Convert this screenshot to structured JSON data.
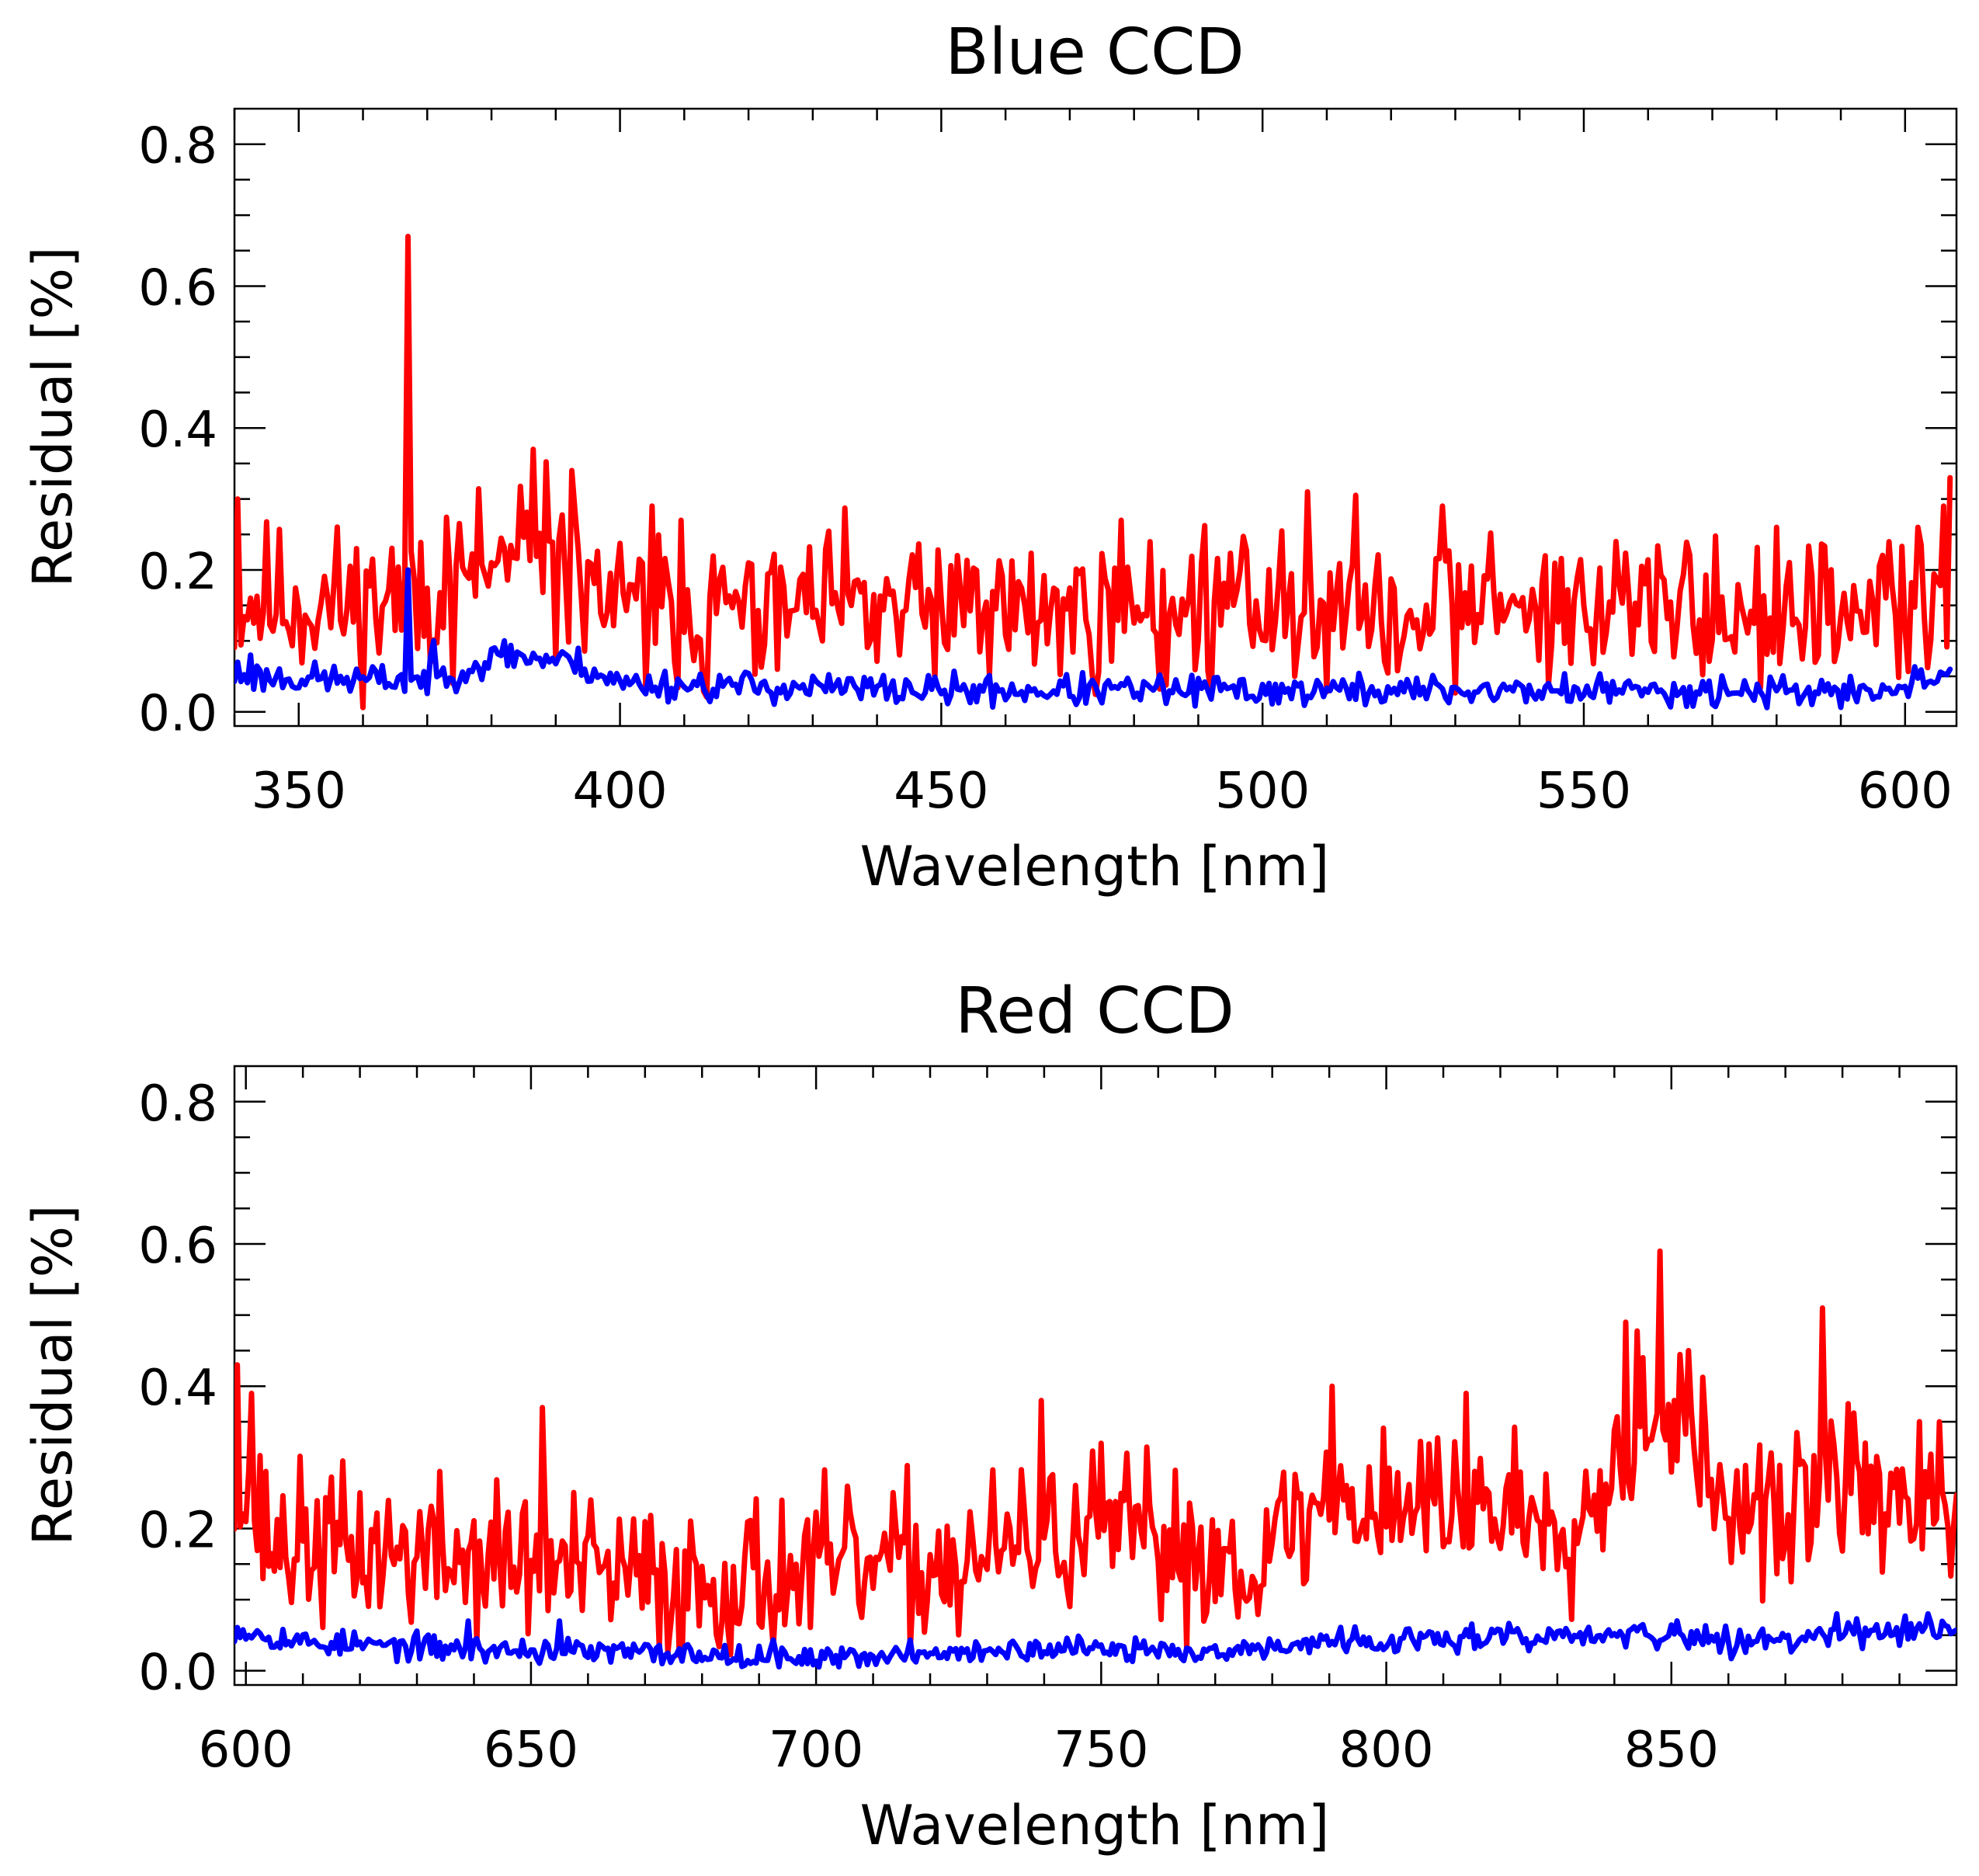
{
  "chart_data": [
    {
      "type": "line",
      "title": "Blue CCD",
      "xlabel": "Wavelength [nm]",
      "ylabel": "Residual [%]",
      "xlim": [
        340,
        608
      ],
      "ylim": [
        -0.02,
        0.85
      ],
      "xticks": [
        350,
        400,
        450,
        500,
        550,
        600
      ],
      "xtick_labels": [
        "350",
        "400",
        "450",
        "500",
        "550",
        "600"
      ],
      "yticks": [
        0.0,
        0.2,
        0.4,
        0.6,
        0.8
      ],
      "ytick_labels": [
        "0.0",
        "0.2",
        "0.4",
        "0.6",
        "0.8"
      ],
      "grid": false,
      "x_range": [
        340,
        607
      ],
      "series": [
        {
          "name": "red",
          "color": "#ff0000",
          "baseline": [
            [
              340,
              0.16
            ],
            [
              360,
              0.15
            ],
            [
              375,
              0.18
            ],
            [
              385,
              0.22
            ],
            [
              395,
              0.19
            ],
            [
              400,
              0.14
            ],
            [
              450,
              0.14
            ],
            [
              500,
              0.15
            ],
            [
              550,
              0.15
            ],
            [
              600,
              0.13
            ],
            [
              607,
              0.18
            ]
          ],
          "noise": 0.055,
          "seed": 11,
          "spikes": [
            [
              367,
              0.67
            ],
            [
              340.5,
              0.3
            ],
            [
              386.5,
              0.37
            ],
            [
              392.5,
              0.34
            ],
            [
              405,
              0.29
            ],
            [
              409.5,
              0.27
            ],
            [
              478,
              0.27
            ],
            [
              507,
              0.31
            ],
            [
              528,
              0.29
            ],
            [
              555,
              0.24
            ],
            [
              580,
              0.26
            ],
            [
              602,
              0.26
            ],
            [
              606,
              0.29
            ],
            [
              607,
              0.33
            ]
          ]
        },
        {
          "name": "blue",
          "color": "#0000ff",
          "baseline": [
            [
              340,
              0.05
            ],
            [
              360,
              0.045
            ],
            [
              370,
              0.045
            ],
            [
              383,
              0.08
            ],
            [
              393,
              0.07
            ],
            [
              400,
              0.04
            ],
            [
              450,
              0.03
            ],
            [
              500,
              0.03
            ],
            [
              550,
              0.03
            ],
            [
              600,
              0.03
            ],
            [
              607,
              0.05
            ]
          ],
          "noise": 0.011,
          "seed": 23,
          "spikes": [
            [
              367,
              0.2
            ],
            [
              342.5,
              0.08
            ],
            [
              382,
              0.1
            ],
            [
              371,
              0.1
            ],
            [
              340.5,
              0.07
            ],
            [
              607,
              0.06
            ]
          ]
        }
      ]
    },
    {
      "type": "line",
      "title": "Red CCD",
      "xlabel": "Wavelength [nm]",
      "ylabel": "Residual [%]",
      "xlim": [
        598,
        900
      ],
      "ylim": [
        -0.02,
        0.85
      ],
      "xticks": [
        600,
        650,
        700,
        750,
        800,
        850
      ],
      "xtick_labels": [
        "600",
        "650",
        "700",
        "750",
        "800",
        "850"
      ],
      "yticks": [
        0.0,
        0.2,
        0.4,
        0.6,
        0.8
      ],
      "ytick_labels": [
        "0.0",
        "0.2",
        "0.4",
        "0.6",
        "0.8"
      ],
      "grid": false,
      "x_range": [
        598,
        900
      ],
      "series": [
        {
          "name": "red",
          "color": "#ff0000",
          "baseline": [
            [
              598,
              0.25
            ],
            [
              605,
              0.18
            ],
            [
              620,
              0.17
            ],
            [
              650,
              0.15
            ],
            [
              675,
              0.12
            ],
            [
              700,
              0.14
            ],
            [
              725,
              0.15
            ],
            [
              750,
              0.2
            ],
            [
              770,
              0.16
            ],
            [
              778,
              0.16
            ],
            [
              790,
              0.24
            ],
            [
              800,
              0.24
            ],
            [
              820,
              0.23
            ],
            [
              835,
              0.22
            ],
            [
              840,
              0.3
            ],
            [
              845,
              0.38
            ],
            [
              850,
              0.37
            ],
            [
              858,
              0.25
            ],
            [
              865,
              0.2
            ],
            [
              880,
              0.27
            ],
            [
              890,
              0.24
            ],
            [
              900,
              0.22
            ]
          ],
          "noise": 0.055,
          "seed": 37,
          "spikes": [
            [
              598.5,
              0.43
            ],
            [
              601,
              0.39
            ],
            [
              652,
              0.37
            ],
            [
              739.5,
              0.38
            ],
            [
              790.5,
              0.4
            ],
            [
              814,
              0.39
            ],
            [
              842,
              0.49
            ],
            [
              848,
              0.59
            ],
            [
              853,
              0.45
            ],
            [
              876.5,
              0.51
            ],
            [
              884,
              0.32
            ],
            [
              897,
              0.35
            ]
          ]
        },
        {
          "name": "blue",
          "color": "#0000ff",
          "baseline": [
            [
              598,
              0.06
            ],
            [
              610,
              0.04
            ],
            [
              640,
              0.03
            ],
            [
              700,
              0.02
            ],
            [
              750,
              0.03
            ],
            [
              775,
              0.03
            ],
            [
              790,
              0.04
            ],
            [
              840,
              0.05
            ],
            [
              850,
              0.05
            ],
            [
              860,
              0.04
            ],
            [
              900,
              0.06
            ]
          ],
          "noise": 0.009,
          "seed": 53,
          "spikes": [
            [
              639,
              0.07
            ],
            [
              655,
              0.07
            ],
            [
              879,
              0.08
            ],
            [
              895,
              0.08
            ]
          ]
        }
      ]
    }
  ]
}
